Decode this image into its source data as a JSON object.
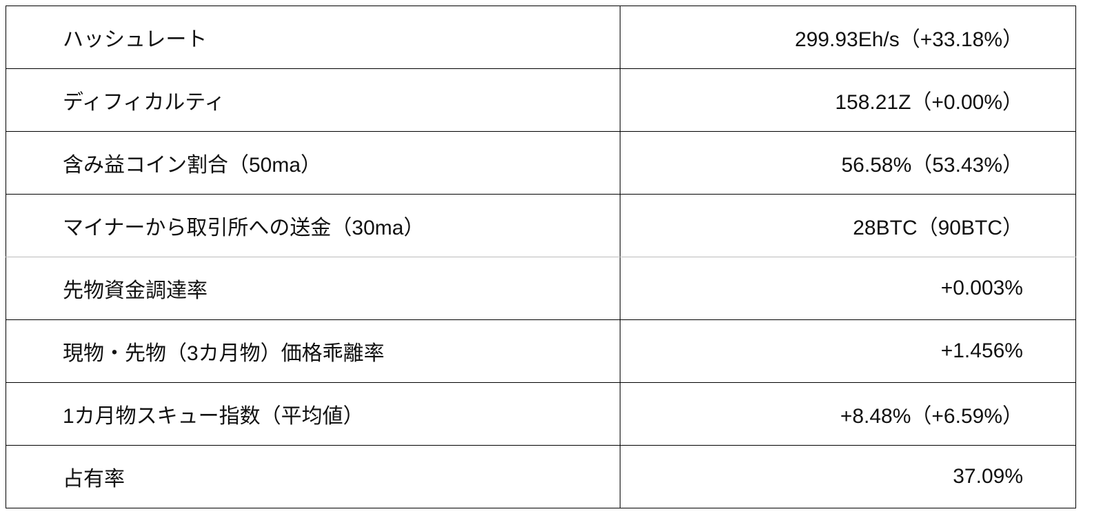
{
  "rows": [
    {
      "label": "ハッシュレート",
      "value": "299.93Eh/s（+33.18%）"
    },
    {
      "label": "ディフィカルティ",
      "value": "158.21Z（+0.00%）"
    },
    {
      "label": "含み益コイン割合（50ma）",
      "value": "56.58%（53.43%）"
    },
    {
      "label": "マイナーから取引所への送金（30ma）",
      "value": "28BTC（90BTC）"
    },
    {
      "label": "先物資金調達率",
      "value": "+0.003%"
    },
    {
      "label": "現物・先物（3カ月物）価格乖離率",
      "value": "+1.456%"
    },
    {
      "label": "1カ月物スキュー指数（平均値）",
      "value": "+8.48%（+6.59%）"
    },
    {
      "label": "占有率",
      "value": "37.09%"
    }
  ]
}
